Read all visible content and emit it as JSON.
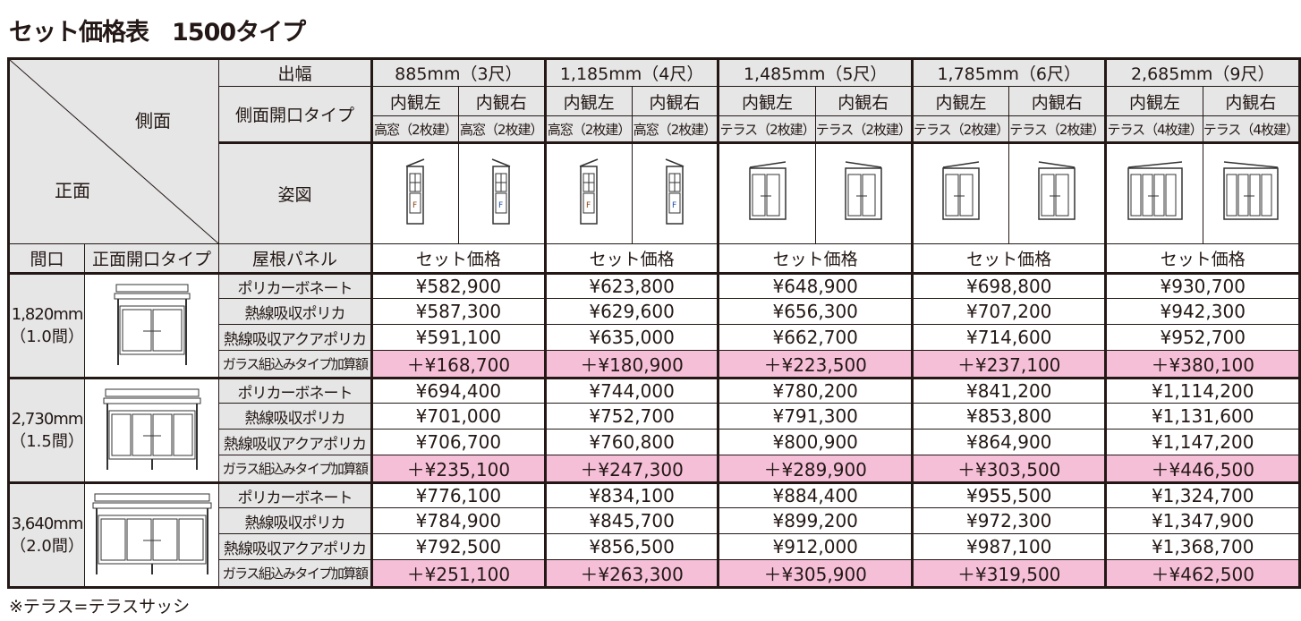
{
  "title": "セット価格表　1500タイプ",
  "corner": {
    "side": "側面",
    "front": "正面"
  },
  "row_labels": {
    "depth": "出幅",
    "side_opening": "側面開口タイプ",
    "figure": "姿図",
    "frontage": "間口",
    "front_opening": "正面開口タイプ",
    "roof_panel": "屋根パネル",
    "set_price": "セット価格"
  },
  "panel_label": "F",
  "columns": [
    {
      "depth": "885mm（3尺）",
      "sides": [
        {
          "view": "内観左",
          "type": "高窓（2枚建）"
        },
        {
          "view": "内観右",
          "type": "高窓（2枚建）"
        }
      ],
      "style": "tall"
    },
    {
      "depth": "1,185mm（4尺）",
      "sides": [
        {
          "view": "内観左",
          "type": "高窓（2枚建）"
        },
        {
          "view": "内観右",
          "type": "高窓（2枚建）"
        }
      ],
      "style": "tall"
    },
    {
      "depth": "1,485mm（5尺）",
      "sides": [
        {
          "view": "内観左",
          "type": "テラス（2枚建）"
        },
        {
          "view": "内観右",
          "type": "テラス（2枚建）"
        }
      ],
      "style": "terrace2"
    },
    {
      "depth": "1,785mm（6尺）",
      "sides": [
        {
          "view": "内観左",
          "type": "テラス（2枚建）"
        },
        {
          "view": "内観右",
          "type": "テラス（2枚建）"
        }
      ],
      "style": "terrace2"
    },
    {
      "depth": "2,685mm（9尺）",
      "sides": [
        {
          "view": "内観左",
          "type": "テラス（4枚建）"
        },
        {
          "view": "内観右",
          "type": "テラス（4枚建）"
        }
      ],
      "style": "terrace4"
    }
  ],
  "panels": [
    "ポリカーボネート",
    "熱線吸収ポリカ",
    "熱線吸収アクアポリカ",
    "ガラス組込みタイプ加算額"
  ],
  "groups": [
    {
      "width": "1,820mm",
      "ken": "（1.0間）",
      "doors": 2,
      "prices": [
        [
          "¥582,900",
          "¥623,800",
          "¥648,900",
          "¥698,800",
          "¥930,700"
        ],
        [
          "¥587,300",
          "¥629,600",
          "¥656,300",
          "¥707,200",
          "¥942,300"
        ],
        [
          "¥591,100",
          "¥635,000",
          "¥662,700",
          "¥714,600",
          "¥952,700"
        ],
        [
          "＋¥168,700",
          "＋¥180,900",
          "＋¥223,500",
          "＋¥237,100",
          "＋¥380,100"
        ]
      ]
    },
    {
      "width": "2,730mm",
      "ken": "（1.5間）",
      "doors": 3,
      "prices": [
        [
          "¥694,400",
          "¥744,000",
          "¥780,200",
          "¥841,200",
          "¥1,114,200"
        ],
        [
          "¥701,000",
          "¥752,700",
          "¥791,300",
          "¥853,800",
          "¥1,131,600"
        ],
        [
          "¥706,700",
          "¥760,800",
          "¥800,900",
          "¥864,900",
          "¥1,147,200"
        ],
        [
          "＋¥235,100",
          "＋¥247,300",
          "＋¥289,900",
          "＋¥303,500",
          "＋¥446,500"
        ]
      ]
    },
    {
      "width": "3,640mm",
      "ken": "（2.0間）",
      "doors": 4,
      "prices": [
        [
          "¥776,100",
          "¥834,100",
          "¥884,400",
          "¥955,500",
          "¥1,324,700"
        ],
        [
          "¥784,900",
          "¥845,700",
          "¥899,200",
          "¥972,300",
          "¥1,347,900"
        ],
        [
          "¥792,500",
          "¥856,500",
          "¥912,000",
          "¥987,100",
          "¥1,368,700"
        ],
        [
          "＋¥251,100",
          "＋¥263,300",
          "＋¥305,900",
          "＋¥319,500",
          "＋¥462,500"
        ]
      ]
    }
  ],
  "footnote": "※テラス=テラスサッシ",
  "colors": {
    "header_bg": "#e6e6e6",
    "addon_bg": "#f6bfd8",
    "line": "#231815",
    "f_brown": "#8b4513",
    "f_blue": "#1f4fa0"
  }
}
